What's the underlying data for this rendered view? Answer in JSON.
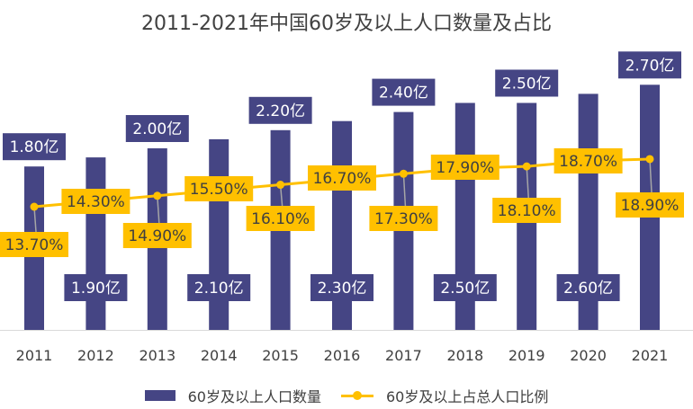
{
  "chart_data": {
    "type": "bar+line",
    "title": "2011-2021年中国60岁及以上人口数量及占比",
    "categories": [
      "2011",
      "2012",
      "2013",
      "2014",
      "2015",
      "2016",
      "2017",
      "2018",
      "2019",
      "2020",
      "2021"
    ],
    "series": [
      {
        "name": "60岁及以上人口数量",
        "type": "bar",
        "unit": "亿",
        "color": "#454584",
        "values": [
          1.8,
          1.9,
          2.0,
          2.1,
          2.2,
          2.3,
          2.4,
          2.5,
          2.5,
          2.6,
          2.7
        ],
        "labels": [
          "1.80亿",
          "1.90亿",
          "2.00亿",
          "2.10亿",
          "2.20亿",
          "2.30亿",
          "2.40亿",
          "2.50亿",
          "2.50亿",
          "2.60亿",
          "2.70亿"
        ]
      },
      {
        "name": "60岁及以上占总人口比例",
        "type": "line",
        "unit": "%",
        "color": "#FFC000",
        "values": [
          13.7,
          14.3,
          14.9,
          15.5,
          16.1,
          16.7,
          17.3,
          17.9,
          18.1,
          18.7,
          18.9
        ],
        "labels": [
          "13.70%",
          "14.30%",
          "14.90%",
          "15.50%",
          "16.10%",
          "16.70%",
          "17.30%",
          "17.90%",
          "18.10%",
          "18.70%",
          "18.90%"
        ]
      }
    ],
    "legend": "bottom",
    "grid": false
  }
}
